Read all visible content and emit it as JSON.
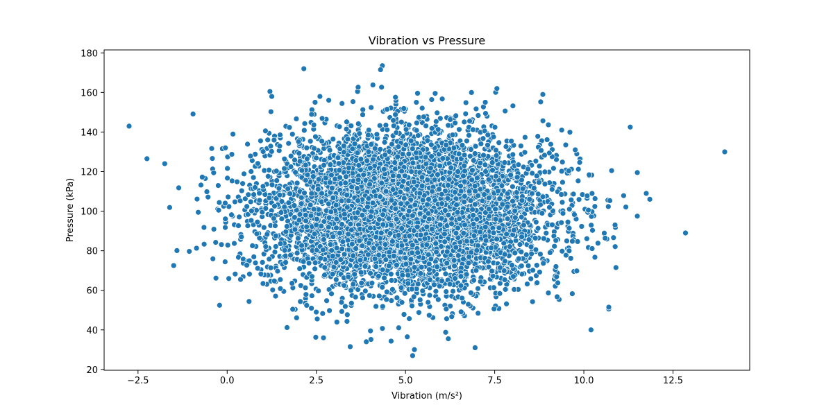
{
  "chart_data": {
    "type": "scatter",
    "title": "Vibration vs Pressure",
    "xlabel": "Vibration (m/s²)",
    "ylabel": "Pressure (kPa)",
    "xlim": [
      -3.45,
      14.65
    ],
    "ylim": [
      19.6,
      181.5
    ],
    "xticks": [
      -2.5,
      0.0,
      2.5,
      5.0,
      7.5,
      10.0,
      12.5
    ],
    "xtick_labels": [
      "−2.5",
      "0.0",
      "2.5",
      "5.0",
      "7.5",
      "10.0",
      "12.5"
    ],
    "yticks": [
      20,
      40,
      60,
      80,
      100,
      120,
      140,
      160,
      180
    ],
    "ytick_labels": [
      "20",
      "40",
      "60",
      "80",
      "100",
      "120",
      "140",
      "160",
      "180"
    ],
    "grid": false,
    "legend": "none",
    "marker_color": "#1f77b4",
    "marker_edge": "#ffffff",
    "distribution": {
      "x_mean": 5.0,
      "x_std": 2.0,
      "y_mean": 100.0,
      "y_std": 20.0,
      "n_points": 6000
    },
    "highlighted_points": [
      {
        "x": -2.75,
        "y": 143
      },
      {
        "x": -2.25,
        "y": 126.5
      },
      {
        "x": -1.75,
        "y": 124
      },
      {
        "x": -1.5,
        "y": 72.5
      },
      {
        "x": 2.15,
        "y": 172
      },
      {
        "x": 4.35,
        "y": 173.5
      },
      {
        "x": 4.3,
        "y": 171.5
      },
      {
        "x": 5.2,
        "y": 27
      },
      {
        "x": 5.25,
        "y": 30
      },
      {
        "x": 3.45,
        "y": 31.5
      },
      {
        "x": 6.95,
        "y": 31
      },
      {
        "x": 13.95,
        "y": 130
      },
      {
        "x": 12.85,
        "y": 89
      },
      {
        "x": 11.85,
        "y": 106
      },
      {
        "x": 11.75,
        "y": 109
      },
      {
        "x": 11.5,
        "y": 119.5
      },
      {
        "x": 11.3,
        "y": 142.5
      },
      {
        "x": 10.2,
        "y": 40
      },
      {
        "x": 10.7,
        "y": 50.5
      },
      {
        "x": 10.7,
        "y": 51.5
      },
      {
        "x": 6.85,
        "y": 160
      },
      {
        "x": 8.85,
        "y": 159
      },
      {
        "x": 1.2,
        "y": 160.5
      },
      {
        "x": 1.25,
        "y": 158
      },
      {
        "x": 2.6,
        "y": 158
      },
      {
        "x": 5.05,
        "y": 36.5
      },
      {
        "x": 6.2,
        "y": 35.5
      },
      {
        "x": 3.9,
        "y": 34
      },
      {
        "x": 2.7,
        "y": 36
      },
      {
        "x": -0.05,
        "y": 132
      },
      {
        "x": 10.9,
        "y": 71.5
      },
      {
        "x": 11.5,
        "y": 97.5
      }
    ]
  }
}
